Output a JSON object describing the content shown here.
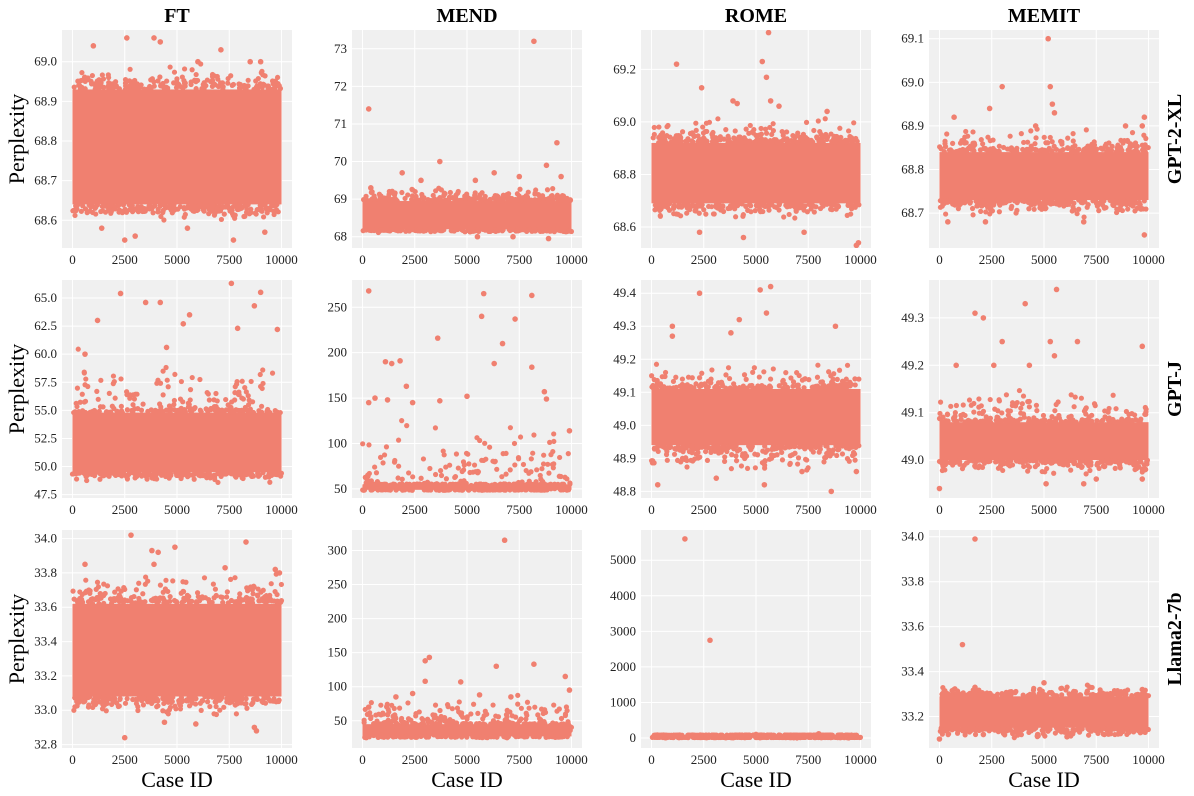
{
  "columns": [
    "FT",
    "MEND",
    "ROME",
    "MEMIT"
  ],
  "rows": [
    "GPT-2-XL",
    "GPT-J",
    "Llama2-7b"
  ],
  "ylabel": "Perplexity",
  "xlabel": "Case ID",
  "colors": {
    "point": "#f08070",
    "panel_bg": "#f0f0f0",
    "grid": "#ffffff"
  },
  "chart_data": [
    {
      "type": "scatter",
      "row": "GPT-2-XL",
      "column": "FT",
      "xlim": [
        -500,
        10500
      ],
      "ylim": [
        68.53,
        69.08
      ],
      "xticks": [
        0,
        2500,
        5000,
        7500,
        10000
      ],
      "yticks": [
        68.6,
        68.7,
        68.8,
        68.9,
        69.0
      ],
      "ytick_labels": [
        "68.6",
        "68.7",
        "68.8",
        "68.9",
        "69.0"
      ],
      "band": {
        "x": [
          0,
          10000
        ],
        "y": [
          68.64,
          68.93
        ]
      },
      "scatter_range": [
        68.6,
        69.0
      ],
      "outliers": [
        [
          1000,
          69.04
        ],
        [
          2600,
          69.06
        ],
        [
          3900,
          69.06
        ],
        [
          4200,
          69.05
        ],
        [
          6000,
          69.0
        ],
        [
          7100,
          69.03
        ],
        [
          8500,
          69.0
        ],
        [
          9000,
          69.0
        ],
        [
          2500,
          68.55
        ],
        [
          3000,
          68.56
        ],
        [
          7700,
          68.55
        ],
        [
          1400,
          68.58
        ],
        [
          5500,
          68.58
        ],
        [
          9200,
          68.57
        ]
      ]
    },
    {
      "type": "scatter",
      "row": "GPT-2-XL",
      "column": "MEND",
      "xlim": [
        -500,
        10500
      ],
      "ylim": [
        67.7,
        73.5
      ],
      "xticks": [
        0,
        2500,
        5000,
        7500,
        10000
      ],
      "yticks": [
        68,
        69,
        70,
        71,
        72,
        73
      ],
      "ytick_labels": [
        "68",
        "69",
        "70",
        "71",
        "72",
        "73"
      ],
      "band": {
        "x": [
          0,
          10000
        ],
        "y": [
          68.2,
          68.95
        ]
      },
      "scatter_range": [
        68.1,
        69.3
      ],
      "outliers": [
        [
          300,
          71.4
        ],
        [
          8200,
          73.2
        ],
        [
          9300,
          70.5
        ],
        [
          3700,
          70.0
        ],
        [
          8800,
          69.9
        ],
        [
          6300,
          69.7
        ],
        [
          5400,
          69.5
        ],
        [
          1900,
          69.7
        ],
        [
          9500,
          69.6
        ],
        [
          7500,
          69.6
        ],
        [
          2800,
          69.5
        ],
        [
          400,
          69.3
        ],
        [
          8900,
          67.95
        ],
        [
          7200,
          68.0
        ],
        [
          5500,
          68.0
        ]
      ]
    },
    {
      "type": "scatter",
      "row": "GPT-2-XL",
      "column": "ROME",
      "xlim": [
        -500,
        10500
      ],
      "ylim": [
        68.52,
        69.35
      ],
      "xticks": [
        0,
        2500,
        5000,
        7500,
        10000
      ],
      "yticks": [
        68.6,
        68.8,
        69.0,
        69.2
      ],
      "ytick_labels": [
        "68.6",
        "68.8",
        "69.0",
        "69.2"
      ],
      "band": {
        "x": [
          0,
          10000
        ],
        "y": [
          68.69,
          68.92
        ]
      },
      "scatter_range": [
        68.62,
        69.02
      ],
      "outliers": [
        [
          5600,
          69.34
        ],
        [
          1200,
          69.22
        ],
        [
          5300,
          69.23
        ],
        [
          5500,
          69.17
        ],
        [
          5700,
          69.08
        ],
        [
          2400,
          69.13
        ],
        [
          4100,
          69.07
        ],
        [
          3900,
          69.08
        ],
        [
          6100,
          69.06
        ],
        [
          8400,
          69.04
        ],
        [
          9800,
          68.53
        ],
        [
          9900,
          68.54
        ],
        [
          4400,
          68.56
        ],
        [
          2300,
          68.58
        ],
        [
          7300,
          68.58
        ]
      ]
    },
    {
      "type": "scatter",
      "row": "GPT-2-XL",
      "column": "MEMIT",
      "xlim": [
        -500,
        10500
      ],
      "ylim": [
        68.62,
        69.12
      ],
      "xticks": [
        0,
        2500,
        5000,
        7500,
        10000
      ],
      "yticks": [
        68.7,
        68.8,
        68.9,
        69.0,
        69.1
      ],
      "ytick_labels": [
        "68.7",
        "68.8",
        "68.9",
        "69.0",
        "69.1"
      ],
      "band": {
        "x": [
          0,
          10000
        ],
        "y": [
          68.73,
          68.84
        ]
      },
      "scatter_range": [
        68.69,
        68.9
      ],
      "outliers": [
        [
          5200,
          69.1
        ],
        [
          5300,
          68.99
        ],
        [
          3000,
          68.99
        ],
        [
          5400,
          68.95
        ],
        [
          5500,
          68.93
        ],
        [
          2400,
          68.94
        ],
        [
          700,
          68.92
        ],
        [
          9800,
          68.92
        ],
        [
          9700,
          68.9
        ],
        [
          8900,
          68.9
        ],
        [
          4600,
          68.9
        ],
        [
          9800,
          68.65
        ],
        [
          2200,
          68.68
        ],
        [
          400,
          68.68
        ],
        [
          6900,
          68.68
        ]
      ]
    },
    {
      "type": "scatter",
      "row": "GPT-J",
      "column": "FT",
      "xlim": [
        -500,
        10500
      ],
      "ylim": [
        47.2,
        66.6
      ],
      "xticks": [
        0,
        2500,
        5000,
        7500,
        10000
      ],
      "yticks": [
        47.5,
        50.0,
        52.5,
        55.0,
        57.5,
        60.0,
        62.5,
        65.0
      ],
      "ytick_labels": [
        "47.5",
        "50.0",
        "52.5",
        "55.0",
        "57.5",
        "60.0",
        "62.5",
        "65.0"
      ],
      "band": {
        "x": [
          0,
          10000
        ],
        "y": [
          49.5,
          54.8
        ]
      },
      "scatter_range": [
        48.5,
        60.5
      ],
      "outliers": [
        [
          7600,
          66.3
        ],
        [
          2300,
          65.4
        ],
        [
          9000,
          65.5
        ],
        [
          3500,
          64.6
        ],
        [
          4200,
          64.6
        ],
        [
          8700,
          64.3
        ],
        [
          5600,
          63.5
        ],
        [
          1200,
          63.0
        ],
        [
          7900,
          62.3
        ],
        [
          9800,
          62.2
        ],
        [
          5300,
          62.7
        ],
        [
          600,
          60.0
        ],
        [
          4500,
          60.6
        ]
      ]
    },
    {
      "type": "scatter",
      "row": "GPT-J",
      "column": "MEND",
      "xlim": [
        -500,
        10500
      ],
      "ylim": [
        40,
        280
      ],
      "xticks": [
        0,
        2500,
        5000,
        7500,
        10000
      ],
      "yticks": [
        50,
        100,
        150,
        200,
        250
      ],
      "ytick_labels": [
        "50",
        "100",
        "150",
        "200",
        "250"
      ],
      "band": {
        "x": [
          0,
          10000
        ],
        "y": [
          49,
          55
        ]
      },
      "scatter_range": [
        55,
        130
      ],
      "outliers": [
        [
          300,
          268
        ],
        [
          5800,
          265
        ],
        [
          8100,
          263
        ],
        [
          5700,
          240
        ],
        [
          7300,
          237
        ],
        [
          3600,
          216
        ],
        [
          6700,
          210
        ],
        [
          1100,
          190
        ],
        [
          1400,
          188
        ],
        [
          1800,
          191
        ],
        [
          6300,
          188
        ],
        [
          8100,
          184
        ],
        [
          2100,
          163
        ],
        [
          8700,
          157
        ],
        [
          300,
          145
        ],
        [
          600,
          150
        ],
        [
          1200,
          148
        ],
        [
          3700,
          147
        ],
        [
          5000,
          152
        ],
        [
          8800,
          149
        ],
        [
          9900,
          114
        ],
        [
          2400,
          145
        ]
      ]
    },
    {
      "type": "scatter",
      "row": "GPT-J",
      "column": "ROME",
      "xlim": [
        -500,
        10500
      ],
      "ylim": [
        48.78,
        49.44
      ],
      "xticks": [
        0,
        2500,
        5000,
        7500,
        10000
      ],
      "yticks": [
        48.8,
        48.9,
        49.0,
        49.1,
        49.2,
        49.3,
        49.4
      ],
      "ytick_labels": [
        "48.8",
        "48.9",
        "49.0",
        "49.1",
        "49.2",
        "49.3",
        "49.4"
      ],
      "band": {
        "x": [
          0,
          10000
        ],
        "y": [
          48.94,
          49.11
        ]
      },
      "scatter_range": [
        48.85,
        49.2
      ],
      "outliers": [
        [
          5700,
          49.42
        ],
        [
          2300,
          49.4
        ],
        [
          5200,
          49.41
        ],
        [
          4200,
          49.32
        ],
        [
          5500,
          49.34
        ],
        [
          8800,
          49.3
        ],
        [
          1000,
          49.3
        ],
        [
          3800,
          49.28
        ],
        [
          1000,
          49.27
        ],
        [
          300,
          48.82
        ],
        [
          5400,
          48.82
        ],
        [
          8600,
          48.8
        ],
        [
          9800,
          48.86
        ],
        [
          3100,
          48.84
        ],
        [
          7200,
          48.86
        ]
      ]
    },
    {
      "type": "scatter",
      "row": "GPT-J",
      "column": "MEMIT",
      "xlim": [
        -500,
        10500
      ],
      "ylim": [
        48.92,
        49.38
      ],
      "xticks": [
        0,
        2500,
        5000,
        7500,
        10000
      ],
      "yticks": [
        49.0,
        49.1,
        49.2,
        49.3
      ],
      "ytick_labels": [
        "49.0",
        "49.1",
        "49.2",
        "49.3"
      ],
      "band": {
        "x": [
          0,
          10000
        ],
        "y": [
          49.0,
          49.08
        ]
      },
      "scatter_range": [
        48.97,
        49.15
      ],
      "outliers": [
        [
          5600,
          49.36
        ],
        [
          4100,
          49.33
        ],
        [
          1700,
          49.31
        ],
        [
          2100,
          49.3
        ],
        [
          6600,
          49.25
        ],
        [
          3000,
          49.25
        ],
        [
          5300,
          49.25
        ],
        [
          5500,
          49.22
        ],
        [
          9700,
          49.24
        ],
        [
          4300,
          49.2
        ],
        [
          800,
          49.2
        ],
        [
          2600,
          49.2
        ],
        [
          0,
          48.94
        ],
        [
          5100,
          48.95
        ],
        [
          6900,
          48.95
        ],
        [
          9700,
          48.96
        ],
        [
          7500,
          48.96
        ]
      ]
    },
    {
      "type": "scatter",
      "row": "Llama2-7b",
      "column": "FT",
      "xlim": [
        -500,
        10500
      ],
      "ylim": [
        32.78,
        34.05
      ],
      "xticks": [
        0,
        2500,
        5000,
        7500,
        10000
      ],
      "yticks": [
        32.8,
        33.0,
        33.2,
        33.4,
        33.6,
        33.8,
        34.0
      ],
      "ytick_labels": [
        "32.8",
        "33.0",
        "33.2",
        "33.4",
        "33.6",
        "33.8",
        "34.0"
      ],
      "band": {
        "x": [
          0,
          10000
        ],
        "y": [
          33.08,
          33.62
        ]
      },
      "scatter_range": [
        32.95,
        33.8
      ],
      "outliers": [
        [
          2800,
          34.02
        ],
        [
          8300,
          33.98
        ],
        [
          4900,
          33.95
        ],
        [
          4100,
          33.92
        ],
        [
          3800,
          33.93
        ],
        [
          3900,
          33.85
        ],
        [
          600,
          33.85
        ],
        [
          7300,
          33.83
        ],
        [
          9700,
          33.82
        ],
        [
          9900,
          33.8
        ],
        [
          2500,
          32.84
        ],
        [
          8800,
          32.88
        ],
        [
          4400,
          32.93
        ],
        [
          5900,
          32.92
        ],
        [
          8700,
          32.9
        ]
      ]
    },
    {
      "type": "scatter",
      "row": "Llama2-7b",
      "column": "MEND",
      "xlim": [
        -500,
        10500
      ],
      "ylim": [
        10,
        330
      ],
      "xticks": [
        0,
        2500,
        5000,
        7500,
        10000
      ],
      "yticks": [
        50,
        100,
        150,
        200,
        250,
        300
      ],
      "ytick_labels": [
        "50",
        "100",
        "150",
        "200",
        "250",
        "300"
      ],
      "band": {
        "x": [
          0,
          10000
        ],
        "y": [
          27,
          45
        ]
      },
      "scatter_range": [
        45,
        90
      ],
      "outliers": [
        [
          6800,
          315
        ],
        [
          3200,
          143
        ],
        [
          3000,
          138
        ],
        [
          8200,
          133
        ],
        [
          6400,
          130
        ],
        [
          3000,
          108
        ],
        [
          4700,
          107
        ],
        [
          9700,
          115
        ],
        [
          9900,
          95
        ],
        [
          300,
          70
        ],
        [
          2400,
          90
        ],
        [
          1600,
          85
        ],
        [
          5600,
          88
        ],
        [
          7100,
          85
        ]
      ]
    },
    {
      "type": "scatter",
      "row": "Llama2-7b",
      "column": "ROME",
      "xlim": [
        -500,
        10500
      ],
      "ylim": [
        -280,
        5850
      ],
      "xticks": [
        0,
        2500,
        5000,
        7500,
        10000
      ],
      "yticks": [
        0,
        1000,
        2000,
        3000,
        4000,
        5000
      ],
      "ytick_labels": [
        "0",
        "1000",
        "2000",
        "3000",
        "4000",
        "5000"
      ],
      "band": {
        "x": [
          0,
          10000
        ],
        "y": [
          20,
          80
        ]
      },
      "scatter_range": [
        0,
        90
      ],
      "outliers": [
        [
          1600,
          5600
        ],
        [
          2800,
          2750
        ],
        [
          5000,
          100
        ],
        [
          8000,
          120
        ]
      ]
    },
    {
      "type": "scatter",
      "row": "Llama2-7b",
      "column": "MEMIT",
      "xlim": [
        -500,
        10500
      ],
      "ylim": [
        33.06,
        34.03
      ],
      "xticks": [
        0,
        2500,
        5000,
        7500,
        10000
      ],
      "yticks": [
        33.2,
        33.4,
        33.6,
        33.8,
        34.0
      ],
      "ytick_labels": [
        "33.2",
        "33.4",
        "33.6",
        "33.8",
        "34.0"
      ],
      "band": {
        "x": [
          0,
          10000
        ],
        "y": [
          33.15,
          33.29
        ]
      },
      "scatter_range": [
        33.1,
        33.35
      ],
      "outliers": [
        [
          1700,
          33.99
        ],
        [
          1100,
          33.52
        ],
        [
          5000,
          33.35
        ],
        [
          1700,
          33.33
        ],
        [
          7200,
          33.33
        ],
        [
          4800,
          33.32
        ],
        [
          9700,
          33.32
        ],
        [
          9700,
          33.3
        ],
        [
          0,
          33.1
        ],
        [
          6100,
          33.11
        ],
        [
          4700,
          33.12
        ],
        [
          2100,
          33.12
        ]
      ]
    }
  ]
}
